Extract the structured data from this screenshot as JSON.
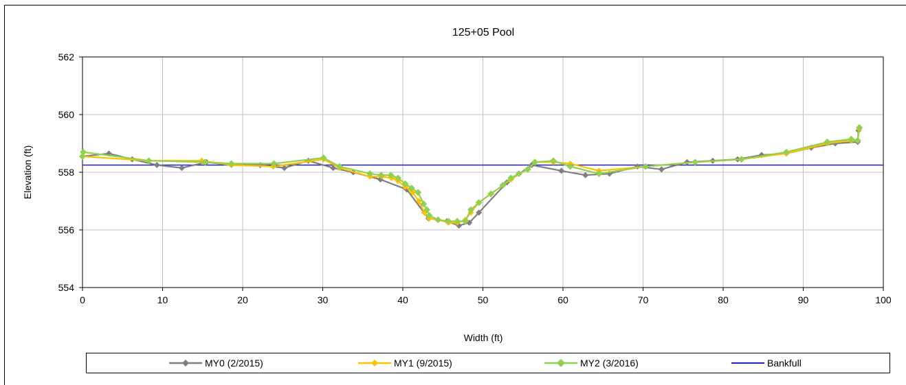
{
  "chart_data": {
    "type": "line",
    "title": "125+05 Pool",
    "xlabel": "Width (ft)",
    "ylabel": "Elevation (ft)",
    "xlim": [
      0,
      100
    ],
    "ylim": [
      554,
      562
    ],
    "xticks": [
      0,
      10,
      20,
      30,
      40,
      50,
      60,
      70,
      80,
      90,
      100
    ],
    "yticks": [
      554,
      556,
      558,
      560,
      562
    ],
    "grid": true,
    "legend_position": "bottom",
    "series": [
      {
        "name": "MY0 (2/2015)",
        "color": "#7f7f7f",
        "marker": "diamond",
        "x": [
          0,
          3.3,
          6.2,
          9.3,
          12.4,
          15.5,
          18.6,
          22.2,
          25.2,
          28.2,
          31.3,
          33.8,
          37.2,
          40.5,
          43.2,
          45.5,
          47.0,
          48.3,
          49.5,
          53.0,
          56.1,
          59.8,
          62.8,
          65.8,
          69.3,
          72.3,
          75.5,
          78.7,
          81.8,
          84.8,
          87.9,
          91.0,
          94.0,
          96.8,
          96.9,
          97.0
        ],
        "y": [
          558.55,
          558.65,
          558.45,
          558.25,
          558.15,
          558.35,
          558.25,
          558.25,
          558.15,
          558.4,
          558.15,
          558.0,
          557.75,
          557.4,
          556.4,
          556.3,
          556.15,
          556.25,
          556.6,
          557.65,
          558.25,
          558.05,
          557.9,
          557.95,
          558.2,
          558.1,
          558.35,
          558.4,
          558.45,
          558.6,
          558.65,
          558.85,
          559.0,
          559.05,
          559.45,
          559.55
        ]
      },
      {
        "name": "MY1 (9/2015)",
        "color": "#ffc000",
        "marker": "diamond",
        "x": [
          0,
          8.3,
          14.9,
          18.6,
          23.8,
          30.1,
          32.1,
          35.9,
          37.4,
          38.6,
          39.4,
          40.3,
          41.2,
          42.0,
          42.7,
          43.3,
          44.4,
          45.7,
          46.8,
          47.8,
          48.5,
          49.5,
          51.0,
          52.5,
          53.5,
          54.5,
          55.6,
          56.5,
          58.8,
          60.9,
          64.5,
          70.3,
          76.5,
          82.3,
          87.9,
          93.0,
          96.0,
          96.8,
          97.0
        ],
        "y": [
          558.55,
          558.4,
          558.4,
          558.25,
          558.2,
          558.45,
          558.15,
          557.85,
          557.85,
          557.8,
          557.7,
          557.5,
          557.3,
          557.0,
          556.6,
          556.4,
          556.35,
          556.25,
          556.25,
          556.35,
          556.6,
          556.95,
          557.25,
          557.55,
          557.75,
          557.95,
          558.1,
          558.35,
          558.35,
          558.3,
          558.05,
          558.2,
          558.35,
          558.45,
          558.65,
          559.0,
          559.1,
          559.1,
          559.5
        ]
      },
      {
        "name": "MY2 (3/2016)",
        "color": "#92d050",
        "marker": "diamond",
        "x": [
          0,
          0.1,
          8.3,
          15.3,
          18.6,
          23.9,
          30.1,
          32.1,
          35.9,
          37.3,
          38.5,
          39.4,
          40.3,
          41.1,
          41.9,
          42.6,
          43.0,
          43.3,
          44.4,
          45.7,
          46.8,
          47.8,
          48.5,
          49.5,
          51.0,
          52.5,
          53.5,
          54.5,
          55.6,
          56.5,
          58.8,
          60.9,
          64.5,
          70.3,
          76.5,
          82.3,
          87.9,
          93.0,
          96.0,
          96.8,
          97.0
        ],
        "y": [
          558.55,
          558.7,
          558.4,
          558.35,
          558.3,
          558.3,
          558.5,
          558.2,
          557.95,
          557.9,
          557.9,
          557.8,
          557.6,
          557.45,
          557.3,
          556.9,
          556.7,
          556.5,
          556.35,
          556.3,
          556.3,
          556.3,
          556.7,
          556.95,
          557.25,
          557.55,
          557.8,
          557.95,
          558.1,
          558.35,
          558.4,
          558.2,
          557.95,
          558.2,
          558.35,
          558.45,
          558.7,
          559.05,
          559.15,
          559.1,
          559.55
        ]
      },
      {
        "name": "Bankfull",
        "color": "#1f1fc8",
        "marker": "none",
        "x": [
          0,
          100
        ],
        "y": [
          558.25,
          558.25
        ]
      }
    ]
  }
}
